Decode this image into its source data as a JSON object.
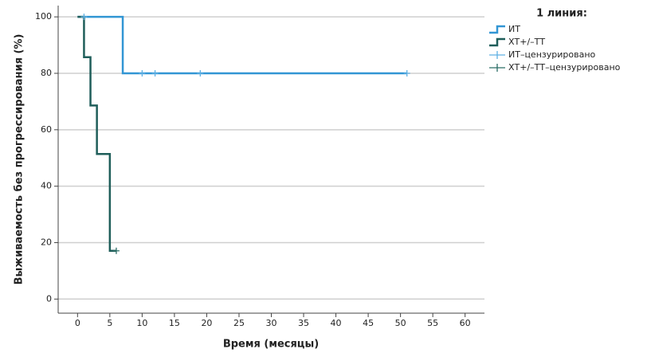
{
  "chart_data": {
    "type": "kaplan-meier",
    "x_label": "Время (месяцы)",
    "y_label": "Выживаемость без прогрессирования (%)",
    "legend_title": "1 линия:",
    "xlim": [
      -3,
      63
    ],
    "xticks": [
      0,
      5,
      10,
      15,
      20,
      25,
      30,
      35,
      40,
      45,
      50,
      55,
      60
    ],
    "ylim": [
      -5,
      104
    ],
    "yticks": [
      0,
      20,
      40,
      60,
      80,
      100
    ],
    "grid": true,
    "series": [
      {
        "name": "ИТ",
        "kind": "step",
        "color": "#3296d4",
        "x": [
          0,
          7,
          51
        ],
        "values": [
          100,
          80,
          80
        ]
      },
      {
        "name": "ХТ+/–ТТ",
        "kind": "step",
        "color": "#1f5e5a",
        "x": [
          0,
          1,
          2,
          3,
          5,
          6
        ],
        "values": [
          100,
          85.7,
          68.6,
          51.4,
          17.1,
          17.1
        ]
      },
      {
        "name": "ИТ–цензурировано",
        "kind": "censored",
        "color": "#5fb0e3",
        "x": [
          1,
          10,
          12,
          19,
          51
        ],
        "values": [
          100,
          80,
          80,
          80,
          80
        ]
      },
      {
        "name": "ХТ+/–ТТ–цензурировано",
        "kind": "censored",
        "color": "#2b6d66",
        "x": [
          6
        ],
        "values": [
          17.1
        ]
      }
    ]
  }
}
